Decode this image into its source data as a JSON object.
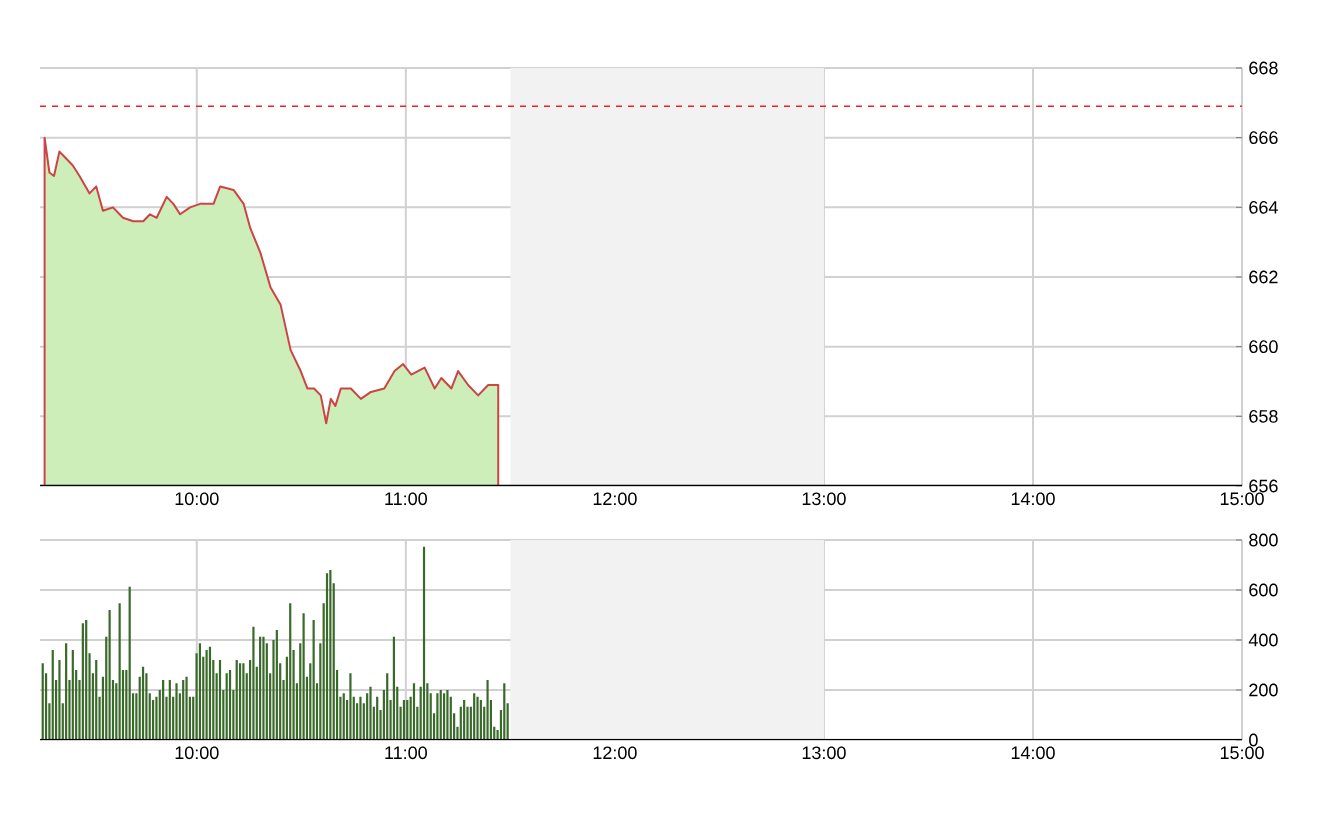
{
  "chart_data": [
    {
      "type": "area",
      "xlim": [
        9.25,
        15
      ],
      "ylim": [
        656,
        668
      ],
      "xticks": [
        {
          "value": 10,
          "label": "10:00"
        },
        {
          "value": 11,
          "label": "11:00"
        },
        {
          "value": 12,
          "label": "12:00"
        },
        {
          "value": 13,
          "label": "13:00"
        },
        {
          "value": 14,
          "label": "14:00"
        },
        {
          "value": 15,
          "label": "15:00"
        }
      ],
      "yticks": [
        656,
        658,
        660,
        662,
        664,
        666,
        668
      ],
      "grid": true,
      "ref_lines": [
        {
          "axis": "y",
          "value": 666.9,
          "color": "#ee2222",
          "line_style": "dashed"
        }
      ],
      "bands": [
        {
          "axis": "x",
          "from": 11.5,
          "to": 13,
          "color": "#f2f2f2"
        }
      ],
      "series": [
        {
          "color": "#cdeeb8",
          "x": [
            9.272,
            9.295,
            9.317,
            9.343,
            9.375,
            9.407,
            9.439,
            9.487,
            9.519,
            9.551,
            9.599,
            9.647,
            9.696,
            9.744,
            9.776,
            9.808,
            9.856,
            9.888,
            9.92,
            9.968,
            10.016,
            10.08,
            10.112,
            10.176,
            10.224,
            10.256,
            10.304,
            10.353,
            10.401,
            10.449,
            10.497,
            10.529,
            10.561,
            10.593,
            10.619,
            10.641,
            10.663,
            10.689,
            10.737,
            10.785,
            10.833,
            10.897,
            10.946,
            10.987,
            11.026,
            11.09,
            11.138,
            11.17,
            11.218,
            11.25,
            11.298,
            11.346,
            11.394,
            11.442
          ],
          "values": [
            666.0,
            665.0,
            664.9,
            665.6,
            665.4,
            665.2,
            664.9,
            664.4,
            664.6,
            663.9,
            664.0,
            663.7,
            663.6,
            663.6,
            663.8,
            663.7,
            664.3,
            664.1,
            663.8,
            664.0,
            664.1,
            664.1,
            664.6,
            664.5,
            664.1,
            663.4,
            662.7,
            661.7,
            661.2,
            659.9,
            659.3,
            658.8,
            658.8,
            658.6,
            657.8,
            658.5,
            658.3,
            658.8,
            658.8,
            658.5,
            658.7,
            658.8,
            659.3,
            659.5,
            659.2,
            659.4,
            658.8,
            659.1,
            658.8,
            659.3,
            658.9,
            658.6,
            658.9,
            658.9
          ]
        }
      ]
    },
    {
      "type": "bar",
      "xlim": [
        9.25,
        15
      ],
      "ylim": [
        0,
        800
      ],
      "xticks": [
        {
          "value": 10,
          "label": "10:00"
        },
        {
          "value": 11,
          "label": "11:00"
        },
        {
          "value": 12,
          "label": "12:00"
        },
        {
          "value": 13,
          "label": "13:00"
        },
        {
          "value": 14,
          "label": "14:00"
        },
        {
          "value": 15,
          "label": "15:00"
        }
      ],
      "yticks": [
        0,
        200,
        400,
        600,
        800
      ],
      "grid": true,
      "bands": [
        {
          "axis": "x",
          "from": 11.5,
          "to": 13,
          "color": "#f2f2f2"
        }
      ],
      "series": [
        {
          "color": "#3a6a2a",
          "x": [
            9.263,
            9.279,
            9.295,
            9.311,
            9.327,
            9.343,
            9.359,
            9.375,
            9.391,
            9.407,
            9.423,
            9.439,
            9.455,
            9.471,
            9.487,
            9.503,
            9.519,
            9.535,
            9.551,
            9.567,
            9.583,
            9.599,
            9.615,
            9.631,
            9.647,
            9.663,
            9.679,
            9.695,
            9.711,
            9.727,
            9.743,
            9.759,
            9.775,
            9.791,
            9.807,
            9.823,
            9.839,
            9.855,
            9.871,
            9.887,
            9.903,
            9.919,
            9.935,
            9.951,
            9.967,
            9.983,
            9.999,
            10.015,
            10.031,
            10.047,
            10.063,
            10.079,
            10.095,
            10.111,
            10.127,
            10.143,
            10.159,
            10.175,
            10.191,
            10.207,
            10.223,
            10.239,
            10.255,
            10.271,
            10.287,
            10.303,
            10.319,
            10.335,
            10.351,
            10.367,
            10.383,
            10.399,
            10.415,
            10.431,
            10.447,
            10.463,
            10.479,
            10.495,
            10.511,
            10.527,
            10.543,
            10.559,
            10.575,
            10.591,
            10.607,
            10.623,
            10.639,
            10.655,
            10.671,
            10.687,
            10.703,
            10.719,
            10.735,
            10.751,
            10.767,
            10.783,
            10.799,
            10.815,
            10.831,
            10.847,
            10.863,
            10.879,
            10.895,
            10.911,
            10.927,
            10.943,
            10.959,
            10.975,
            10.991,
            11.007,
            11.023,
            11.039,
            11.055,
            11.071,
            11.087,
            11.103,
            11.119,
            11.135,
            11.151,
            11.167,
            11.183,
            11.199,
            11.215,
            11.231,
            11.247,
            11.263,
            11.279,
            11.295,
            11.311,
            11.327,
            11.343,
            11.359,
            11.375,
            11.391,
            11.407,
            11.423,
            11.439,
            11.455,
            11.471,
            11.487
          ],
          "values": [
            307,
            267,
            147,
            360,
            240,
            320,
            147,
            387,
            240,
            360,
            280,
            240,
            467,
            480,
            347,
            267,
            320,
            173,
            253,
            413,
            520,
            240,
            227,
            547,
            280,
            280,
            613,
            187,
            187,
            253,
            293,
            267,
            187,
            160,
            173,
            200,
            240,
            173,
            240,
            173,
            227,
            187,
            240,
            253,
            173,
            173,
            347,
            387,
            333,
            360,
            373,
            320,
            267,
            320,
            200,
            267,
            280,
            200,
            320,
            307,
            307,
            267,
            320,
            453,
            293,
            413,
            413,
            387,
            267,
            400,
            440,
            307,
            240,
            333,
            547,
            360,
            227,
            387,
            507,
            253,
            307,
            480,
            227,
            387,
            547,
            667,
            680,
            627,
            280,
            173,
            187,
            160,
            267,
            173,
            147,
            173,
            147,
            187,
            213,
            133,
            173,
            120,
            200,
            267,
            160,
            413,
            213,
            133,
            160,
            160,
            173,
            227,
            133,
            213,
            773,
            227,
            187,
            107,
            187,
            200,
            187,
            200,
            173,
            107,
            53,
            133,
            160,
            133,
            133,
            187,
            173,
            160,
            133,
            240,
            160,
            53,
            40,
            120,
            227,
            147
          ]
        }
      ]
    }
  ]
}
